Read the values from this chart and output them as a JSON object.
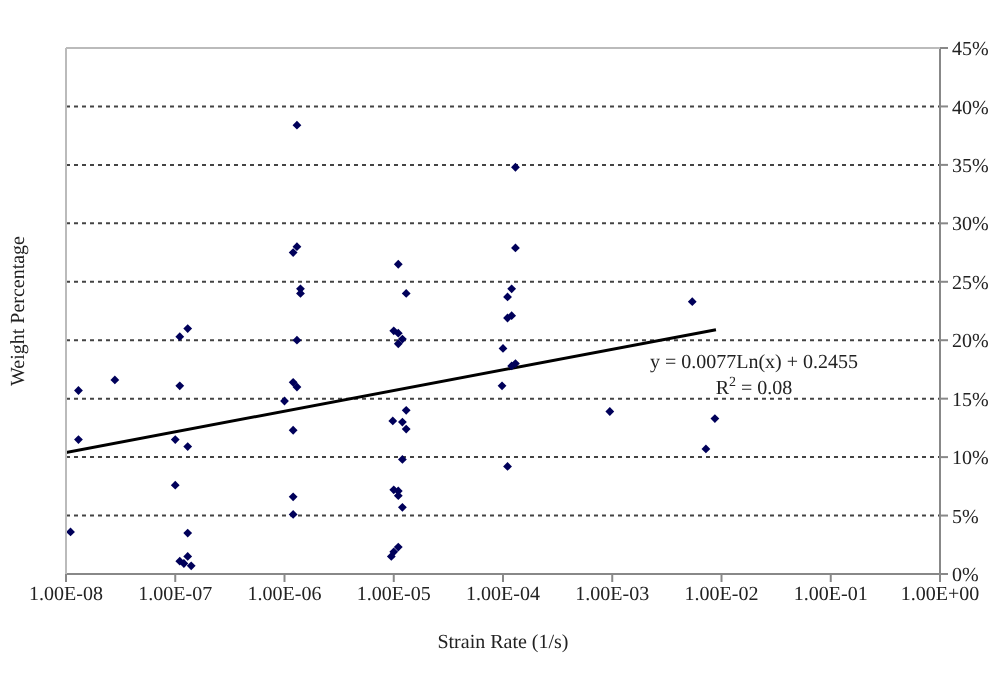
{
  "chart_data": {
    "type": "scatter",
    "xlabel": "Strain Rate (1/s)",
    "ylabel": "Weight Percentage",
    "log": "x",
    "grid": "y",
    "line_style": "dotted",
    "marker": "diamond",
    "legend": false,
    "xlim": [
      1e-08,
      1
    ],
    "xticks": [
      {
        "value": 1e-08,
        "label": "1.00E-08"
      },
      {
        "value": 1e-07,
        "label": "1.00E-07"
      },
      {
        "value": 1e-06,
        "label": "1.00E-06"
      },
      {
        "value": 1e-05,
        "label": "1.00E-05"
      },
      {
        "value": 0.0001,
        "label": "1.00E-04"
      },
      {
        "value": 0.001,
        "label": "1.00E-03"
      },
      {
        "value": 0.01,
        "label": "1.00E-02"
      },
      {
        "value": 0.1,
        "label": "1.00E-01"
      },
      {
        "value": 1,
        "label": "1.00E+00"
      }
    ],
    "ylim": [
      0,
      45
    ],
    "yticks": [
      {
        "value": 0,
        "label": "0%"
      },
      {
        "value": 5,
        "label": "5%"
      },
      {
        "value": 10,
        "label": "10%"
      },
      {
        "value": 15,
        "label": "15%"
      },
      {
        "value": 20,
        "label": "20%"
      },
      {
        "value": 25,
        "label": "25%"
      },
      {
        "value": 30,
        "label": "30%"
      },
      {
        "value": 35,
        "label": "35%"
      },
      {
        "value": 40,
        "label": "40%"
      },
      {
        "value": 45,
        "label": "45%"
      }
    ],
    "annotations": [
      "y = 0.0077Ln(x) + 0.2455",
      "R$^{2}$ = 0.08"
    ],
    "series": [
      {
        "type": "scatter",
        "color": "#00005a",
        "x": [
          1.1e-08,
          1.3e-08,
          1.3e-08,
          2.8e-08,
          1e-07,
          1e-07,
          1.1e-07,
          1.3e-07,
          1.1e-07,
          1.3e-07,
          1.3e-07,
          1.1e-07,
          1.2e-07,
          1.3e-07,
          1.4e-07,
          1.3e-06,
          1.2e-06,
          1.3e-06,
          1.4e-06,
          1.4e-06,
          1.3e-06,
          1.2e-06,
          1.3e-06,
          1e-06,
          1.2e-06,
          1.2e-06,
          1.2e-06,
          1.1e-05,
          1.3e-05,
          1e-05,
          1.1e-05,
          1.2e-05,
          1.1e-05,
          1.3e-05,
          9.8e-06,
          1.2e-05,
          1.3e-05,
          1.2e-05,
          1e-05,
          1.1e-05,
          1.1e-05,
          1.2e-05,
          1.1e-05,
          1e-05,
          9.5e-06,
          0.00013,
          0.00013,
          0.00012,
          0.00011,
          0.00012,
          0.00011,
          0.0001,
          0.00013,
          0.00012,
          9.8e-05,
          0.00011,
          0.00095,
          0.0054,
          0.0087,
          0.0072
        ],
        "values": [
          3.6,
          15.7,
          11.5,
          16.6,
          11.5,
          7.6,
          20.3,
          21.0,
          16.1,
          10.9,
          3.5,
          1.1,
          0.9,
          1.5,
          0.7,
          38.4,
          27.5,
          28.0,
          24.4,
          24.0,
          20.0,
          16.4,
          16.0,
          14.8,
          12.3,
          6.6,
          5.1,
          26.5,
          24.0,
          20.8,
          20.6,
          20.1,
          19.7,
          14.0,
          13.1,
          13.0,
          12.4,
          9.8,
          7.2,
          7.1,
          6.7,
          5.7,
          2.3,
          1.9,
          1.5,
          34.8,
          27.9,
          24.4,
          23.7,
          22.1,
          21.9,
          19.3,
          18.0,
          17.8,
          16.1,
          9.2,
          13.9,
          23.3,
          13.3,
          10.7
        ]
      },
      {
        "type": "line",
        "color": "#000000",
        "line_style": "solid",
        "marker": "none",
        "x": [
          1e-08,
          0.0089
        ],
        "values": [
          10.4,
          20.9
        ]
      }
    ]
  }
}
